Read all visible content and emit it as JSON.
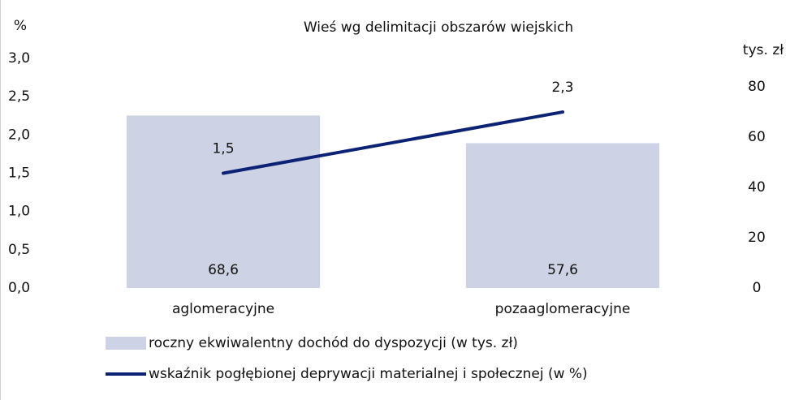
{
  "chart_data": {
    "type": "bar",
    "title": "Wieś wg delimitacji obszarów wiejskich",
    "ylabel": "%",
    "y2label": "tys. zł",
    "categories": [
      "aglomeracyjne",
      "pozaaglomeracyjne"
    ],
    "series": [
      {
        "name": "roczny ekwiwalentny dochód do dyspozycji (w tys. zł)",
        "type": "bar",
        "axis": "y2",
        "color": "#cdd2e5",
        "values": [
          68.6,
          57.6
        ],
        "value_labels": [
          "68,6",
          "57,6"
        ]
      },
      {
        "name": "wskaźnik pogłębionej deprywacji materialnej i społecznej (w %)",
        "type": "line",
        "axis": "y",
        "color": "#0c2274",
        "values": [
          1.5,
          2.3
        ],
        "value_labels": [
          "1,5",
          "2,3"
        ]
      }
    ],
    "ylim": [
      0,
      3.0
    ],
    "yticks": [
      {
        "value": 0,
        "label": "0,0"
      },
      {
        "value": 0.5,
        "label": "0,5"
      },
      {
        "value": 1.0,
        "label": "1,0"
      },
      {
        "value": 1.5,
        "label": "1,5"
      },
      {
        "value": 2.0,
        "label": "2,0"
      },
      {
        "value": 2.5,
        "label": "2,5"
      },
      {
        "value": 3.0,
        "label": "3,0"
      }
    ],
    "y2lim": [
      0,
      91.3
    ],
    "y2ticks": [
      0,
      20,
      40,
      60,
      80
    ],
    "grid": false
  }
}
